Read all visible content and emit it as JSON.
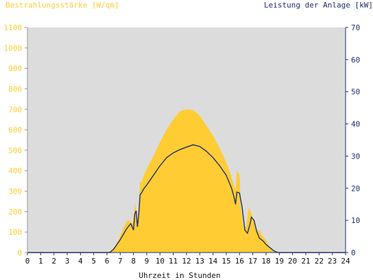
{
  "chart_data": {
    "type": "area",
    "title": "",
    "ylabel_left": "Bestrahlungsstärke [W/qm]",
    "ylabel_right": "Leistung der Anlage [kW]",
    "xlabel": "Uhrzeit in Stunden",
    "xlim": [
      0,
      24
    ],
    "ylim_left": [
      0,
      1100
    ],
    "ylim_right": [
      0,
      70
    ],
    "x_ticks": [
      "0",
      "1",
      "2",
      "3",
      "4",
      "5",
      "6",
      "7",
      "8",
      "9",
      "10",
      "11",
      "12",
      "13",
      "14",
      "15",
      "16",
      "17",
      "18",
      "19",
      "20",
      "21",
      "22",
      "23",
      "24"
    ],
    "y_left_ticks": [
      "0",
      "100",
      "200",
      "300",
      "400",
      "500",
      "600",
      "700",
      "800",
      "900",
      "1000",
      "1100"
    ],
    "y_right_ticks": [
      "0",
      "10",
      "20",
      "30",
      "40",
      "50",
      "60",
      "70"
    ],
    "grid": false,
    "colors": {
      "irradiance": "#ffcc33",
      "power": "#1f2f6f",
      "plot_bg": "#dcdcdc",
      "axis": "#1f2f6f"
    },
    "series": [
      {
        "name": "Bestrahlungsstärke [W/qm]",
        "axis": "left",
        "kind": "area",
        "x": [
          0,
          6.0,
          6.3,
          6.6,
          7.0,
          7.3,
          7.6,
          7.9,
          8.0,
          8.1,
          8.2,
          8.3,
          8.4,
          8.5,
          8.6,
          8.8,
          9.0,
          9.5,
          10.0,
          10.5,
          11.0,
          11.5,
          12.0,
          12.5,
          13.0,
          13.5,
          14.0,
          14.5,
          15.0,
          15.4,
          15.6,
          15.7,
          15.8,
          16.0,
          16.1,
          16.3,
          16.5,
          16.7,
          16.9,
          17.1,
          17.3,
          17.5,
          17.8,
          18.0,
          18.3,
          18.6,
          18.9,
          24
        ],
        "y": [
          0,
          0,
          10,
          30,
          80,
          130,
          160,
          140,
          170,
          245,
          200,
          160,
          240,
          350,
          340,
          380,
          410,
          470,
          540,
          600,
          650,
          690,
          700,
          695,
          670,
          620,
          570,
          510,
          440,
          370,
          320,
          310,
          400,
          380,
          230,
          120,
          130,
          220,
          190,
          150,
          110,
          110,
          75,
          60,
          20,
          5,
          0,
          0
        ]
      },
      {
        "name": "Leistung der Anlage [kW]",
        "axis": "right",
        "kind": "line",
        "x": [
          0,
          6.2,
          6.5,
          7.0,
          7.5,
          7.8,
          8.0,
          8.1,
          8.2,
          8.3,
          8.4,
          8.5,
          8.6,
          8.8,
          9.0,
          9.5,
          10.0,
          10.5,
          11.0,
          11.5,
          12.0,
          12.5,
          13.0,
          13.5,
          14.0,
          14.5,
          15.0,
          15.4,
          15.6,
          15.7,
          15.8,
          16.0,
          16.2,
          16.4,
          16.6,
          16.8,
          16.9,
          17.1,
          17.3,
          17.5,
          17.8,
          18.0,
          18.3,
          18.6,
          18.9,
          24
        ],
        "y": [
          0,
          0,
          1,
          4,
          7.5,
          9,
          7,
          12,
          13,
          8,
          12,
          18,
          18.5,
          20,
          21,
          24,
          27,
          29.5,
          31,
          32,
          32.8,
          33.5,
          33,
          31.5,
          29.5,
          27,
          24,
          20,
          17,
          15,
          18.8,
          18.5,
          14,
          7,
          6,
          9,
          11,
          10,
          6.5,
          4.5,
          3.5,
          2.5,
          1.5,
          0.5,
          0,
          0
        ]
      }
    ]
  }
}
